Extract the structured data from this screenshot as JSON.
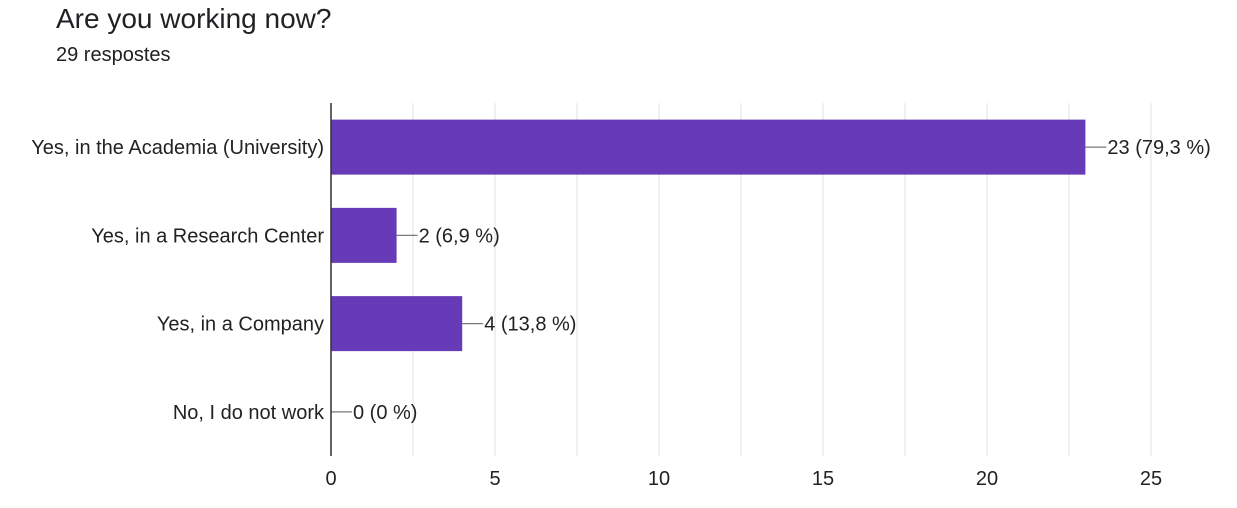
{
  "header": {
    "title": "Are you working now?",
    "responses": "29 respostes"
  },
  "colors": {
    "bar": "#673ab7",
    "grid": "#e6e6e6",
    "axis": "#333333",
    "leader": "#7a7a7a"
  },
  "chart_data": {
    "type": "bar",
    "orientation": "horizontal",
    "categories": [
      "Yes, in the Academia (University)",
      "Yes, in a Research Center",
      "Yes, in a Company",
      "No, I do not work"
    ],
    "values": [
      23,
      2,
      4,
      0
    ],
    "data_labels": [
      "23 (79,3 %)",
      "2 (6,9 %)",
      "4 (13,8 %)",
      "0 (0 %)"
    ],
    "xlim": [
      0,
      25
    ],
    "x_ticks": [
      0,
      5,
      10,
      15,
      20,
      25
    ],
    "grid": true,
    "legend": "none",
    "title": "",
    "xlabel": "",
    "ylabel": ""
  }
}
